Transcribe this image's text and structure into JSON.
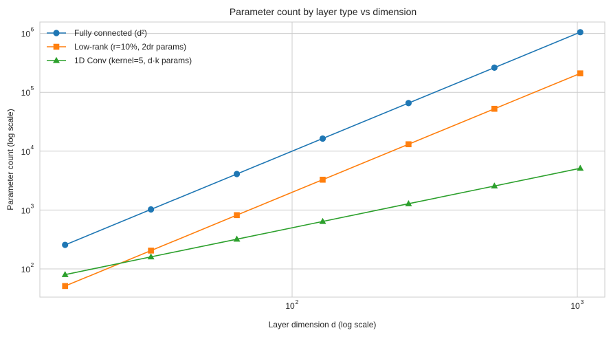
{
  "chart_data": {
    "type": "line",
    "title": "Parameter count by layer type vs dimension",
    "xlabel": "Layer dimension d (log scale)",
    "ylabel": "Parameter count (log scale)",
    "xscale": "log",
    "yscale": "log",
    "xlim": [
      13.5,
      1300
    ],
    "ylim": [
      30,
      1800000
    ],
    "x_ticks": [
      {
        "base": "10",
        "exp": "2",
        "value": 100
      },
      {
        "base": "10",
        "exp": "3",
        "value": 1000
      }
    ],
    "y_ticks": [
      {
        "base": "10",
        "exp": "2",
        "value": 100
      },
      {
        "base": "10",
        "exp": "3",
        "value": 1000
      },
      {
        "base": "10",
        "exp": "4",
        "value": 10000
      },
      {
        "base": "10",
        "exp": "5",
        "value": 100000
      },
      {
        "base": "10",
        "exp": "6",
        "value": 1000000
      }
    ],
    "grid": true,
    "legend_position": "upper left",
    "x": [
      16,
      32,
      64,
      128,
      256,
      512,
      1024
    ],
    "series": [
      {
        "name": "Fully connected (d²)",
        "color": "#1f77b4",
        "marker": "circle",
        "values": [
          256,
          1024,
          4096,
          16384,
          65536,
          262144,
          1048576
        ]
      },
      {
        "name": "Low-rank (r=10%, 2dr params)",
        "color": "#ff7f0e",
        "marker": "square",
        "values": [
          51.2,
          204.8,
          819.2,
          3276.8,
          13107.2,
          52428.8,
          209715.2
        ]
      },
      {
        "name": "1D Conv (kernel=5, d·k params)",
        "color": "#2ca02c",
        "marker": "triangle",
        "values": [
          80,
          160,
          320,
          640,
          1280,
          2560,
          5120
        ]
      }
    ]
  }
}
